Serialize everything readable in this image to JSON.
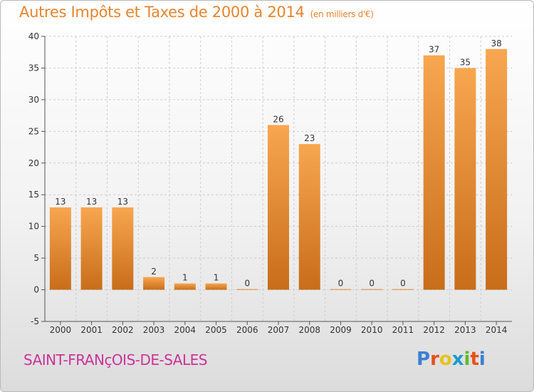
{
  "header": {
    "title": "Autres Impôts et Taxes de 2000 à 2014",
    "unit": "(en milliers d'€)"
  },
  "footer": {
    "place": "SAINT-FRANçOIS-DE-SALES",
    "logo": "Proxiti"
  },
  "colors": {
    "title": "#e8842a",
    "place": "#cc3399",
    "bar_light": "#f8a650",
    "bar_dark": "#c86d1a",
    "grid": "#cccccc",
    "axis": "#555555"
  },
  "logo_colors": [
    "#3b7fd4",
    "#e8501a",
    "#e8c21a",
    "#1a9ad4",
    "#66b82a",
    "#e8501a",
    "#3b7fd4"
  ],
  "chart_data": {
    "type": "bar",
    "categories": [
      "2000",
      "2001",
      "2002",
      "2003",
      "2004",
      "2005",
      "2006",
      "2007",
      "2008",
      "2009",
      "2010",
      "2011",
      "2012",
      "2013",
      "2014"
    ],
    "values": [
      13,
      13,
      13,
      2,
      1,
      1,
      0,
      26,
      23,
      0,
      0,
      0,
      37,
      35,
      38
    ],
    "data_labels": [
      "13",
      "13",
      "13",
      "2",
      "1",
      "1",
      "0",
      "26",
      "23",
      "0",
      "0",
      "0",
      "37",
      "35",
      "38"
    ],
    "ylim": [
      -5,
      40
    ],
    "yticks": [
      -5,
      0,
      5,
      10,
      15,
      20,
      25,
      30,
      35,
      40
    ],
    "grid": true
  }
}
